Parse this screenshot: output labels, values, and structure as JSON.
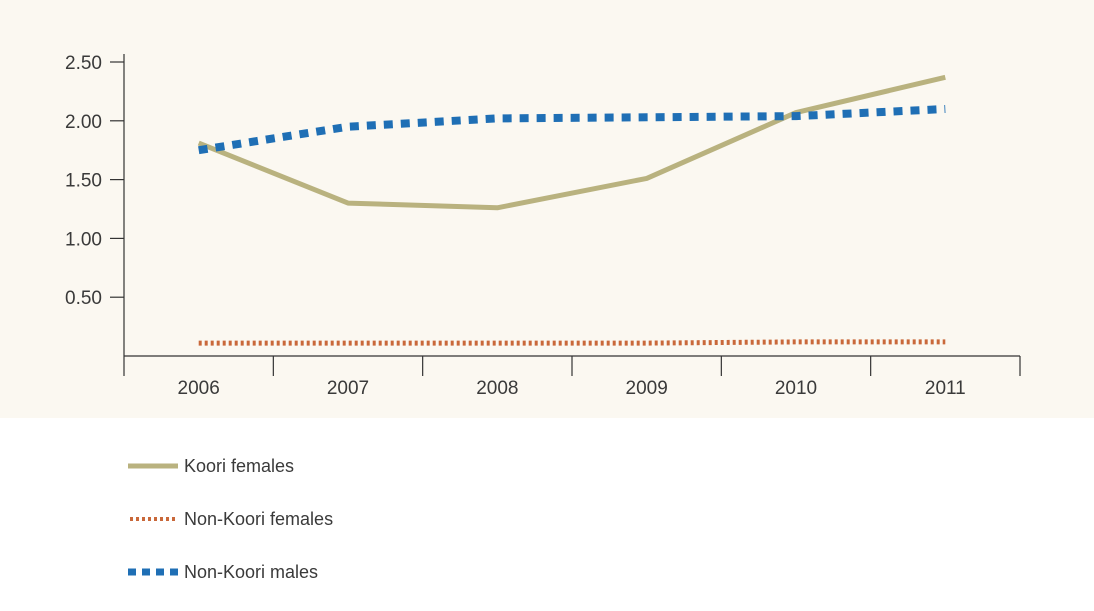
{
  "chart_data": {
    "type": "line",
    "x": [
      "2006",
      "2007",
      "2008",
      "2009",
      "2010",
      "2011"
    ],
    "ylim": [
      0,
      2.5
    ],
    "yticks": [
      "0.50",
      "1.00",
      "1.50",
      "2.00",
      "2.50"
    ],
    "grid": false,
    "legend_position": "bottom-left",
    "series": [
      {
        "name": "Koori females",
        "color": "#b9b27f",
        "style": "solid",
        "values": [
          1.81,
          1.3,
          1.26,
          1.51,
          2.07,
          2.37
        ]
      },
      {
        "name": "Non-Koori females",
        "color": "#c9683a",
        "style": "dotted",
        "values": [
          0.11,
          0.11,
          0.11,
          0.11,
          0.12,
          0.12
        ]
      },
      {
        "name": "Non-Koori males",
        "color": "#1f6fb5",
        "style": "dashed",
        "values": [
          1.75,
          1.95,
          2.02,
          2.03,
          2.04,
          2.1
        ]
      }
    ]
  }
}
